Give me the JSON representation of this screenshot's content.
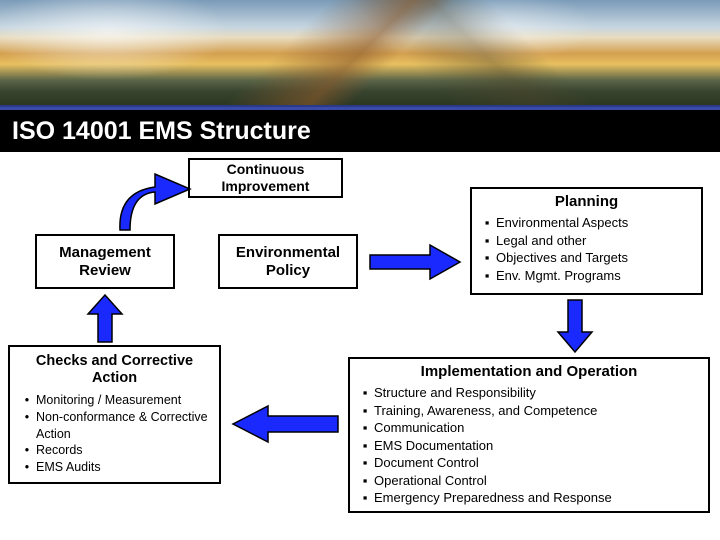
{
  "title": "ISO 14001 EMS Structure",
  "colors": {
    "arrow_fill": "#1a2aff",
    "arrow_stroke": "#000000",
    "box_border": "#000000",
    "title_bg": "#000000",
    "title_fg": "#ffffff"
  },
  "boxes": {
    "continuous": {
      "line1": "Continuous",
      "line2": "Improvement"
    },
    "policy": {
      "line1": "Environmental",
      "line2": "Policy"
    },
    "mgmt": {
      "line1": "Management",
      "line2": "Review"
    },
    "planning": {
      "header": "Planning",
      "items": [
        "Environmental Aspects",
        "Legal and other",
        "Objectives and Targets",
        "Env. Mgmt. Programs"
      ]
    },
    "checks": {
      "header": "Checks and Corrective Action",
      "items": [
        "Monitoring / Measurement",
        "Non-conformance & Corrective Action",
        "Records",
        "EMS Audits"
      ]
    },
    "impl": {
      "header": "Implementation and Operation",
      "items": [
        "Structure and Responsibility",
        "Training, Awareness, and Competence",
        "Communication",
        "EMS Documentation",
        "Document Control",
        "Operational Control",
        "Emergency Preparedness and Response"
      ]
    }
  },
  "bullet": "▪",
  "bullet_big": "•"
}
